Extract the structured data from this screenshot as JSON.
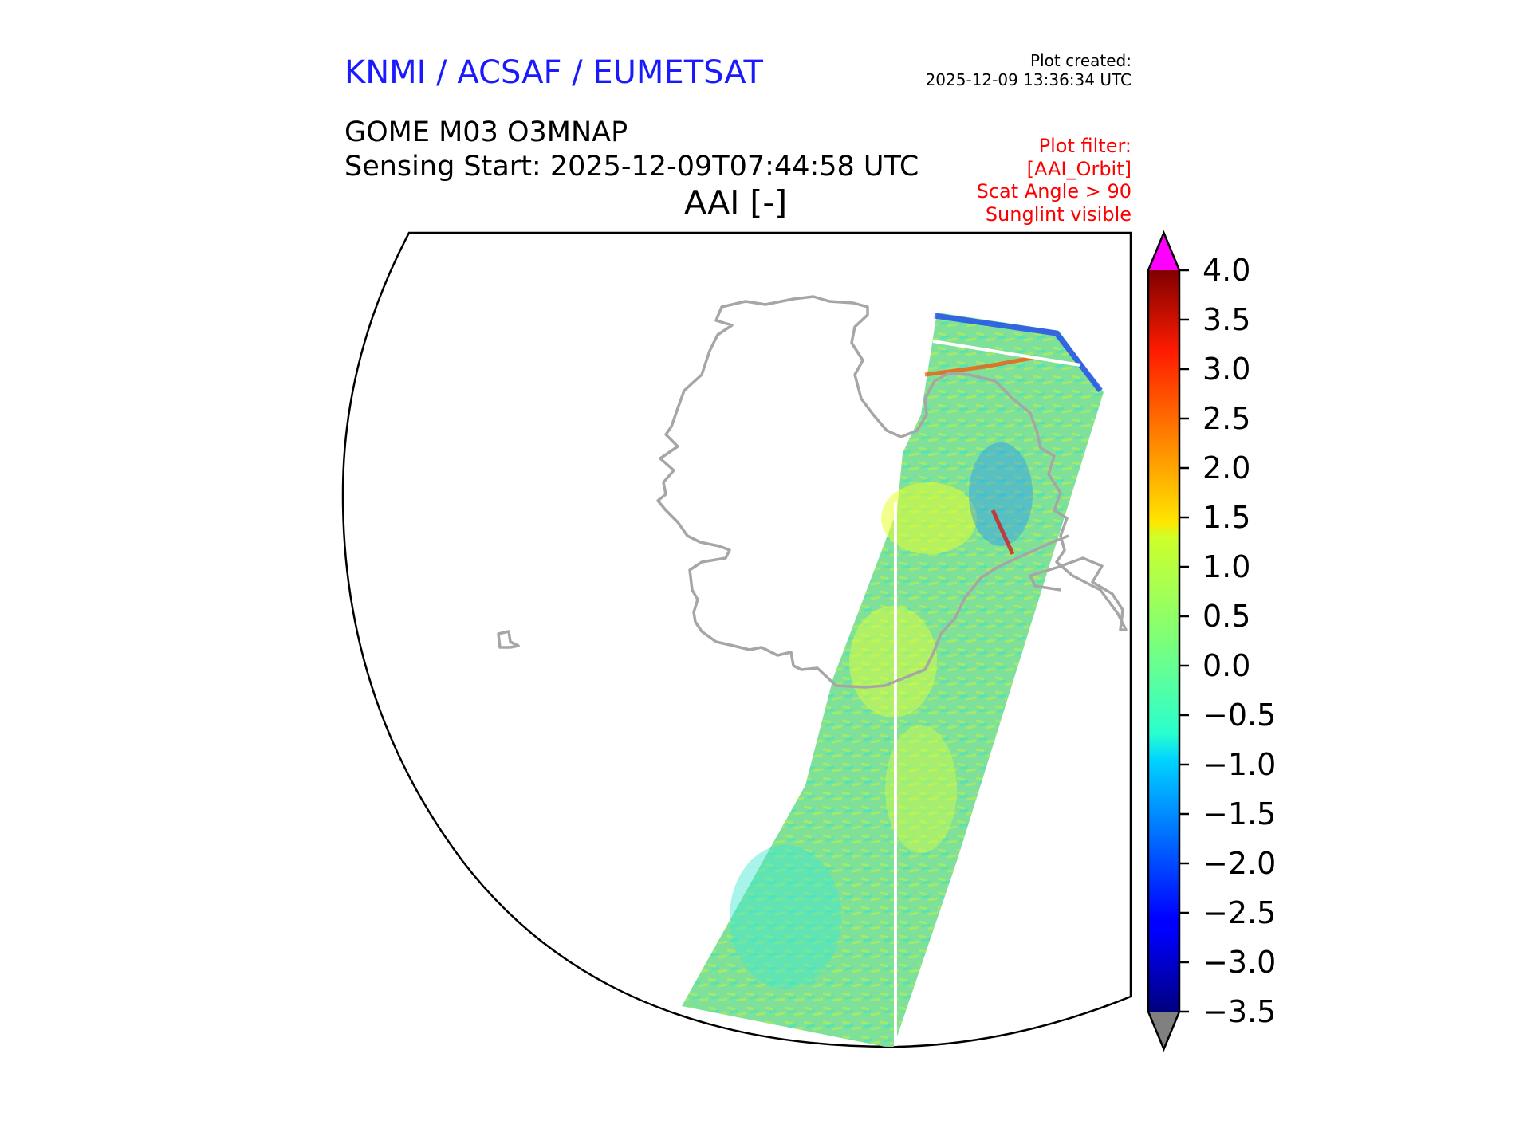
{
  "header": {
    "agency": "KNMI / ACSAF / EUMETSAT",
    "plot_created_label": "Plot created:",
    "plot_created_time": "2025-12-09 13:36:34 UTC",
    "product": "GOME M03 O3MNAP",
    "sensing_start": "Sensing Start: 2025-12-09T07:44:58 UTC",
    "variable": "AAI [-]"
  },
  "plot_filter": {
    "lines": [
      "Plot filter:",
      "[AAI_Orbit]",
      "Scat Angle > 90",
      "Sunglint visible"
    ]
  },
  "colorbar": {
    "tick_labels": [
      "4.0",
      "3.5",
      "3.0",
      "2.5",
      "2.0",
      "1.5",
      "1.0",
      "0.5",
      "0.0",
      "−0.5",
      "−1.0",
      "−1.5",
      "−2.0",
      "−2.5",
      "−3.0",
      "−3.5"
    ],
    "min": -3.5,
    "max": 4.0,
    "colormap": "jet",
    "over_color": "#ff00ff",
    "under_color": "#808080"
  },
  "colors": {
    "coastline": "#a6a6a6",
    "swath_base": "#7fe09a",
    "agency_title": "#1a1aff",
    "filter_text": "#ff0000"
  }
}
